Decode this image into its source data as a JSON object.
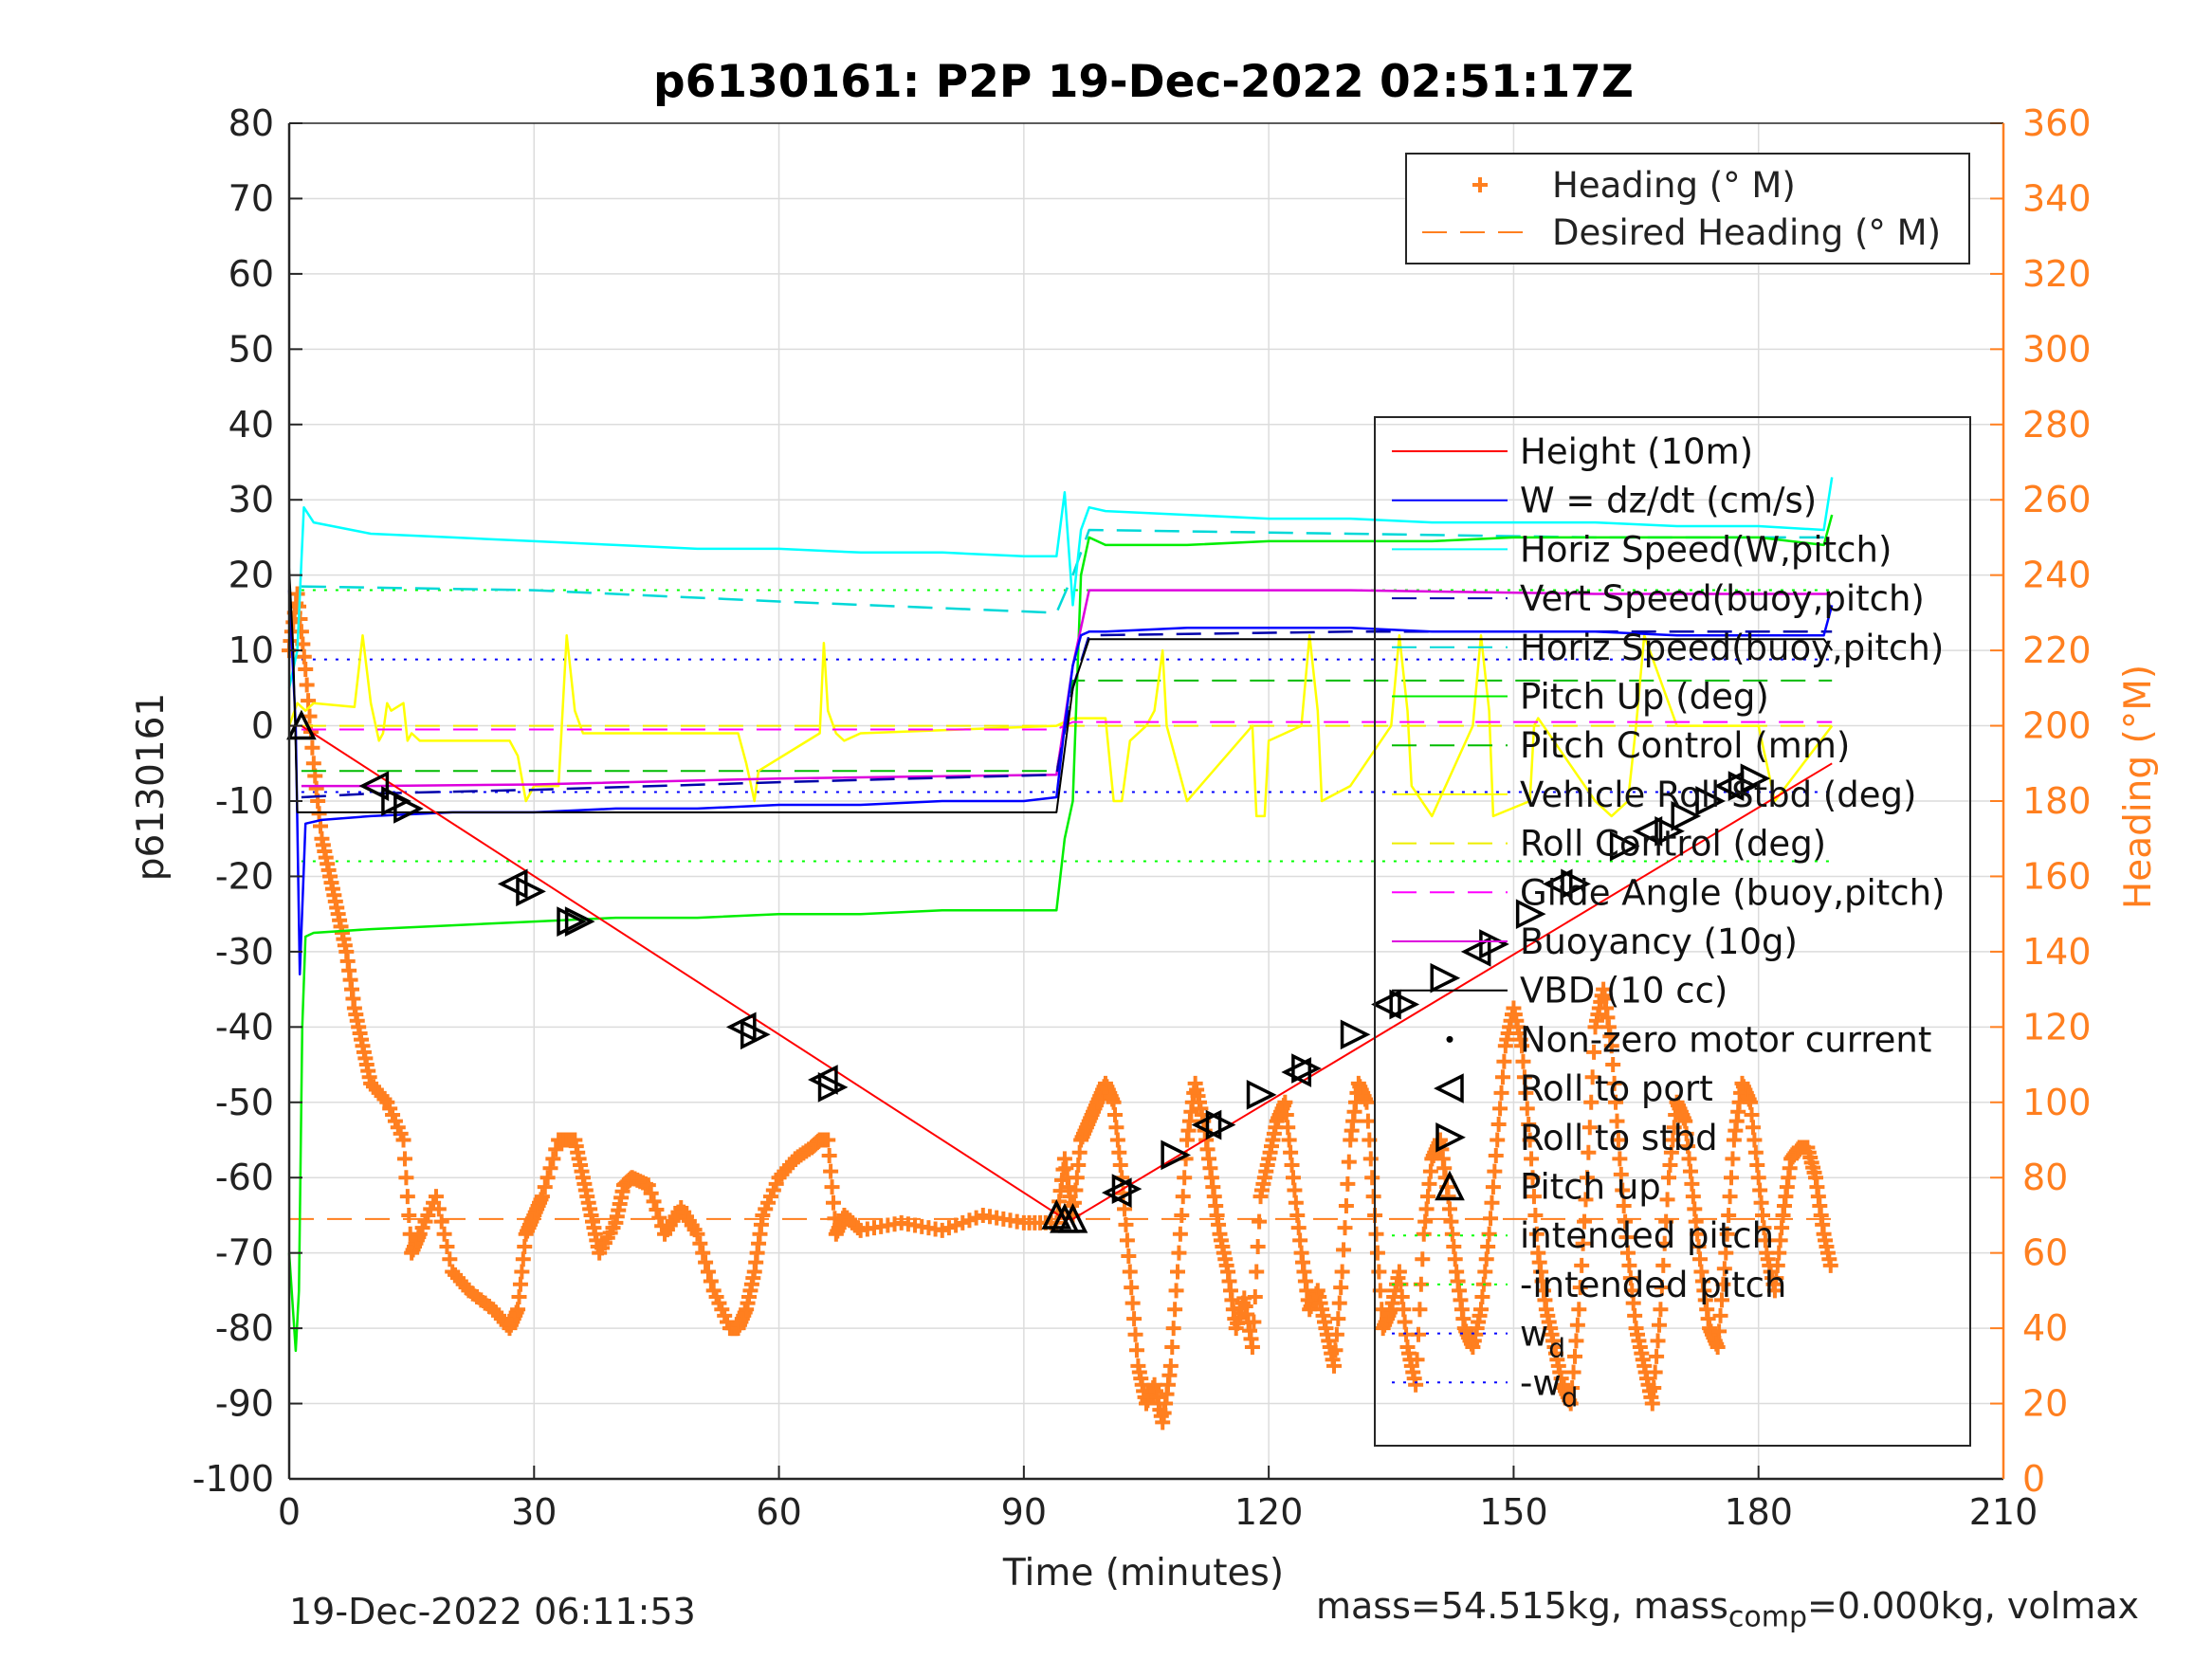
{
  "chart_data": {
    "type": "line",
    "title": "p6130161: P2P 19-Dec-2022 02:51:17Z",
    "xlabel": "Time (minutes)",
    "ylabel": "p6130161",
    "y2label": "Heading (°M)",
    "xlim": [
      0,
      210
    ],
    "ylim": [
      -100,
      80
    ],
    "y2lim": [
      0,
      360
    ],
    "xticks": [
      "0",
      "30",
      "60",
      "90",
      "120",
      "150",
      "180",
      "210"
    ],
    "yticks": [
      "80",
      "70",
      "60",
      "50",
      "40",
      "30",
      "20",
      "10",
      "0",
      "-10",
      "-20",
      "-30",
      "-40",
      "-50",
      "-60",
      "-70",
      "-80",
      "-90",
      "-100"
    ],
    "y2ticks": [
      "360",
      "340",
      "320",
      "300",
      "280",
      "260",
      "240",
      "220",
      "200",
      "180",
      "160",
      "140",
      "120",
      "100",
      "80",
      "60",
      "40",
      "20",
      "0"
    ],
    "grid": true,
    "colors": {
      "height": "#ff0000",
      "w": "#0000ff",
      "horiz_speed": "#00ffff",
      "vert_speed_buoy": "#0000aa",
      "horiz_speed_buoy": "#00d8d8",
      "pitch_up": "#00ee00",
      "pitch_control": "#00bb00",
      "roll": "#ffff00",
      "roll_control": "#eeee00",
      "glide": "#ff00ff",
      "buoyancy": "#dd00dd",
      "vbd": "#000000",
      "heading": "#ff7f1f",
      "axis_right": "#ff7f1f"
    },
    "legend_heading": {
      "placement": "top-right",
      "entries": [
        {
          "label": "Heading (° M)",
          "marker": "plus"
        },
        {
          "label": "Desired Heading (° M)",
          "marker": "dash"
        }
      ]
    },
    "legend_main": {
      "placement": "right",
      "entries": [
        {
          "label": "Height (10m)",
          "color": "#ff0000",
          "style": "solid"
        },
        {
          "label": "W = dz/dt (cm/s)",
          "color": "#0000ff",
          "style": "solid"
        },
        {
          "label": "Horiz Speed(W,pitch)",
          "color": "#00ffff",
          "style": "solid"
        },
        {
          "label": "Vert Speed(buoy,pitch)",
          "color": "#0000aa",
          "style": "dashed"
        },
        {
          "label": "Horiz Speed(buoy,pitch)",
          "color": "#00d8d8",
          "style": "dashed"
        },
        {
          "label": "Pitch Up (deg)",
          "color": "#00ee00",
          "style": "solid"
        },
        {
          "label": "Pitch Control (mm)",
          "color": "#00bb00",
          "style": "dashed"
        },
        {
          "label": "Vehicle Roll Stbd (deg)",
          "color": "#ffff00",
          "style": "solid"
        },
        {
          "label": "Roll Control (deg)",
          "color": "#eeee00",
          "style": "dashed"
        },
        {
          "label": "Glide Angle (buoy,pitch)",
          "color": "#ff00ff",
          "style": "dashed"
        },
        {
          "label": "Buoyancy (10g)",
          "color": "#dd00dd",
          "style": "solid"
        },
        {
          "label": "VBD (10 cc)",
          "color": "#000000",
          "style": "solid"
        },
        {
          "label": "Non-zero motor current",
          "color": "#000000",
          "style": "dot"
        },
        {
          "label": "Roll to port",
          "color": "#000000",
          "style": "tri-left"
        },
        {
          "label": "Roll to stbd",
          "color": "#000000",
          "style": "tri-right"
        },
        {
          "label": "Pitch up",
          "color": "#000000",
          "style": "tri-up"
        },
        {
          "label": "intended pitch",
          "color": "#00ff00",
          "style": "dotted"
        },
        {
          "label": "-intended pitch",
          "color": "#00ff00",
          "style": "dotted"
        },
        {
          "label": "w",
          "sub": "d",
          "color": "#0000ff",
          "style": "dotted"
        },
        {
          "label": "-w",
          "sub": "d",
          "color": "#0000ff",
          "style": "dotted"
        }
      ]
    },
    "reference_lines": [
      {
        "name": "intended pitch",
        "y": 18
      },
      {
        "name": "-intended pitch",
        "y": -18
      },
      {
        "name": "w_d",
        "y": 8.8
      },
      {
        "name": "-w_d",
        "y": -8.8
      },
      {
        "name": "Desired Heading (° M)",
        "y2": 69
      }
    ],
    "series": [
      {
        "name": "Height (10m)",
        "x": [
          0,
          1.5,
          95,
          96,
          189
        ],
        "y": [
          0,
          0,
          -65.5,
          -65.5,
          -5
        ]
      },
      {
        "name": "W = dz/dt (cm/s)",
        "x": [
          0,
          0.8,
          1.3,
          2,
          4,
          10,
          20,
          30,
          40,
          50,
          60,
          70,
          80,
          90,
          94,
          95,
          96,
          97,
          98,
          100,
          110,
          120,
          130,
          140,
          150,
          160,
          170,
          180,
          188,
          189
        ],
        "y": [
          18,
          0,
          -33,
          -13,
          -12.5,
          -12,
          -11.5,
          -11.5,
          -11,
          -11,
          -10.5,
          -10.5,
          -10,
          -10,
          -9.5,
          0,
          8,
          12,
          12.5,
          12.5,
          13,
          13,
          13,
          12.5,
          12.5,
          12.5,
          12,
          12,
          12,
          16
        ]
      },
      {
        "name": "Horiz Speed(W,pitch)",
        "x": [
          0,
          1,
          1.8,
          3,
          10,
          20,
          30,
          40,
          50,
          60,
          70,
          80,
          90,
          94,
          95,
          96,
          97,
          98,
          100,
          110,
          120,
          130,
          140,
          150,
          160,
          170,
          180,
          188,
          189
        ],
        "y": [
          5,
          10,
          29,
          27,
          25.5,
          25,
          24.5,
          24,
          23.5,
          23.5,
          23,
          23,
          22.5,
          22.5,
          31,
          16,
          26,
          29,
          28.5,
          28,
          27.5,
          27.5,
          27,
          27,
          27,
          26.5,
          26.5,
          26,
          33
        ]
      },
      {
        "name": "Vert Speed(buoy,pitch)",
        "x": [
          1.5,
          10,
          30,
          60,
          94,
          96,
          98,
          130,
          160,
          189
        ],
        "y": [
          -9.5,
          -9,
          -8.5,
          -7.5,
          -6.5,
          5,
          12,
          12.5,
          12.5,
          12.5
        ]
      },
      {
        "name": "Horiz Speed(buoy,pitch)",
        "x": [
          1.5,
          30,
          60,
          94,
          96,
          98,
          130,
          160,
          189
        ],
        "y": [
          18.5,
          18,
          16.5,
          15,
          20,
          26,
          25.5,
          25,
          25
        ]
      },
      {
        "name": "Pitch Up (deg)",
        "x": [
          0,
          0.8,
          1.2,
          1.6,
          2,
          3,
          10,
          20,
          30,
          40,
          50,
          60,
          70,
          80,
          90,
          94,
          95,
          96,
          97,
          98,
          100,
          110,
          120,
          130,
          140,
          150,
          160,
          170,
          180,
          188,
          189
        ],
        "y": [
          -70,
          -83,
          -75,
          -40,
          -28,
          -27.5,
          -27,
          -26.5,
          -26,
          -25.5,
          -25.5,
          -25,
          -25,
          -24.5,
          -24.5,
          -24.5,
          -15,
          -10,
          20,
          25,
          24,
          24,
          24.5,
          24.5,
          24.5,
          25,
          25,
          25,
          25,
          24,
          28
        ]
      },
      {
        "name": "Pitch Control (mm)",
        "x": [
          1.5,
          94,
          96,
          189
        ],
        "y": [
          -6,
          -6,
          6,
          6
        ]
      },
      {
        "name": "Vehicle Roll Stbd (deg)",
        "x": [
          0,
          1,
          2,
          3,
          8,
          9,
          10,
          11,
          11.5,
          12,
          12.5,
          14,
          14.5,
          15,
          16,
          27,
          28,
          29,
          30,
          33,
          34,
          35,
          36,
          55,
          56,
          57,
          57.5,
          65,
          65.5,
          66,
          67,
          68,
          70,
          94,
          96,
          100,
          101,
          102,
          103,
          105,
          106,
          107,
          107.5,
          110,
          118,
          118.5,
          119.5,
          120,
          124,
          125,
          126,
          126.5,
          130,
          135,
          136,
          137,
          137.5,
          140,
          145,
          146,
          147,
          147.5,
          152,
          152.5,
          153,
          160,
          162,
          164,
          165,
          166,
          170,
          180,
          182,
          189
        ],
        "y": [
          0,
          3,
          2,
          3,
          2.5,
          12,
          3,
          -2,
          -1,
          3,
          2,
          3,
          -2,
          -1,
          -2,
          -2,
          -4,
          -10,
          -8,
          -8,
          12,
          2,
          -1,
          -1,
          -5,
          -10,
          -6,
          -1,
          11,
          2,
          -1,
          -2,
          -1,
          0,
          1,
          1,
          -10,
          -10,
          -2,
          0,
          2,
          10,
          0,
          -10,
          0,
          -12,
          -12,
          -2,
          0,
          12,
          2,
          -10,
          -8,
          0,
          12,
          2,
          -8,
          -12,
          0,
          12,
          2,
          -12,
          -10,
          0,
          1,
          -10,
          -12,
          -10,
          0,
          12,
          0,
          0,
          -10,
          0
        ]
      },
      {
        "name": "Roll Control (deg)",
        "x": [
          1.5,
          94,
          96,
          189
        ],
        "y": [
          0,
          0,
          0,
          0
        ]
      },
      {
        "name": "Glide Angle (buoy,pitch)",
        "x": [
          1.5,
          94,
          96,
          189
        ],
        "y": [
          -0.5,
          -0.5,
          0.5,
          0.5
        ]
      },
      {
        "name": "Buoyancy (10g)",
        "x": [
          1.5,
          10,
          30,
          60,
          94,
          96,
          98,
          130,
          160,
          189
        ],
        "y": [
          -8,
          -8,
          -7.8,
          -7,
          -6.5,
          8,
          18,
          18,
          17.5,
          17.5
        ]
      },
      {
        "name": "VBD (10 cc)",
        "x": [
          0,
          0.5,
          1,
          1.5,
          94,
          96,
          98,
          188,
          189
        ],
        "y": [
          21,
          10,
          -11.5,
          -11.5,
          -11.5,
          5,
          11.5,
          11.5,
          10
        ]
      }
    ],
    "roll_port_markers": {
      "x": [
        10.5,
        27.5,
        55.5,
        65.5,
        101.5,
        112.5,
        123.5,
        134.5,
        145.5,
        155.5,
        166.5,
        176.5
      ],
      "y": [
        -8,
        -21,
        -40,
        -47,
        -62,
        -53,
        -46,
        -37,
        -30,
        -21,
        -14,
        -8
      ]
    },
    "roll_stbd_markers": {
      "x": [
        13,
        14.5,
        29.5,
        34.5,
        35.5,
        57,
        66.5,
        102.5,
        108.5,
        114,
        119,
        124.5,
        130.5,
        136.5,
        141.5,
        147.5,
        152,
        157.5,
        163.5,
        169,
        171,
        174,
        178,
        179.5
      ],
      "y": [
        -10,
        -11,
        -22,
        -26,
        -26,
        -41,
        -48,
        -61.5,
        -57,
        -53,
        -49,
        -45.5,
        -41,
        -37,
        -33.5,
        -29,
        -25,
        -21,
        -16,
        -14,
        -12,
        -10,
        -8,
        -7
      ]
    },
    "pitch_up_markers": {
      "x": [
        1.5,
        94,
        95,
        96
      ],
      "y": [
        0,
        -65,
        -65.5,
        -65.5
      ]
    },
    "heading": {
      "x": [
        0,
        1,
        2,
        3,
        4,
        5,
        6,
        7,
        8,
        9,
        10,
        12,
        14,
        15,
        16,
        18,
        20,
        22,
        25,
        27,
        28,
        29,
        30,
        31,
        33,
        35,
        36,
        37,
        38,
        40,
        41,
        42,
        44,
        46,
        48,
        50,
        52,
        54,
        55,
        56,
        57,
        58,
        60,
        62,
        64,
        65,
        66,
        67,
        68,
        70,
        75,
        80,
        85,
        90,
        94,
        95,
        96,
        97,
        98,
        99,
        100,
        101,
        102,
        103,
        104,
        105,
        106,
        107,
        108,
        109,
        110,
        111,
        112,
        113,
        114,
        115,
        116,
        117,
        118,
        119,
        120,
        121,
        122,
        123,
        124,
        125,
        126,
        127,
        128,
        129,
        130,
        131,
        132,
        133,
        134,
        135,
        136,
        137,
        138,
        139,
        140,
        141,
        142,
        143,
        144,
        145,
        146,
        147,
        148,
        149,
        150,
        151,
        152,
        153,
        154,
        155,
        156,
        157,
        158,
        159,
        160,
        161,
        162,
        163,
        164,
        165,
        166,
        167,
        168,
        169,
        170,
        171,
        172,
        173,
        174,
        175,
        176,
        177,
        178,
        179,
        180,
        181,
        182,
        183,
        184,
        185,
        186,
        187,
        188,
        189
      ],
      "y": [
        220,
        235,
        215,
        190,
        170,
        160,
        150,
        140,
        125,
        115,
        105,
        100,
        90,
        60,
        65,
        75,
        55,
        50,
        45,
        40,
        45,
        65,
        70,
        75,
        90,
        90,
        80,
        70,
        60,
        68,
        78,
        80,
        78,
        65,
        72,
        65,
        50,
        40,
        40,
        45,
        55,
        70,
        80,
        85,
        88,
        90,
        90,
        65,
        70,
        66,
        68,
        66,
        70,
        68,
        68,
        85,
        70,
        90,
        95,
        100,
        105,
        100,
        80,
        55,
        30,
        20,
        25,
        15,
        30,
        60,
        90,
        105,
        95,
        80,
        65,
        55,
        40,
        48,
        35,
        75,
        85,
        95,
        100,
        80,
        60,
        45,
        50,
        40,
        30,
        55,
        90,
        105,
        100,
        70,
        40,
        45,
        55,
        35,
        25,
        65,
        85,
        90,
        75,
        55,
        40,
        35,
        45,
        65,
        90,
        115,
        125,
        115,
        90,
        60,
        45,
        35,
        25,
        20,
        45,
        80,
        120,
        130,
        115,
        85,
        60,
        40,
        30,
        20,
        45,
        80,
        100,
        95,
        75,
        55,
        40,
        35,
        60,
        90,
        105,
        100,
        80,
        60,
        50,
        70,
        85,
        88,
        88,
        80,
        65,
        55
      ]
    }
  },
  "footer": {
    "left": "19-Dec-2022 06:11:53",
    "right_prefix": "mass=54.515kg, mass",
    "right_sub": "comp",
    "right_suffix": "=0.000kg, volmax"
  }
}
